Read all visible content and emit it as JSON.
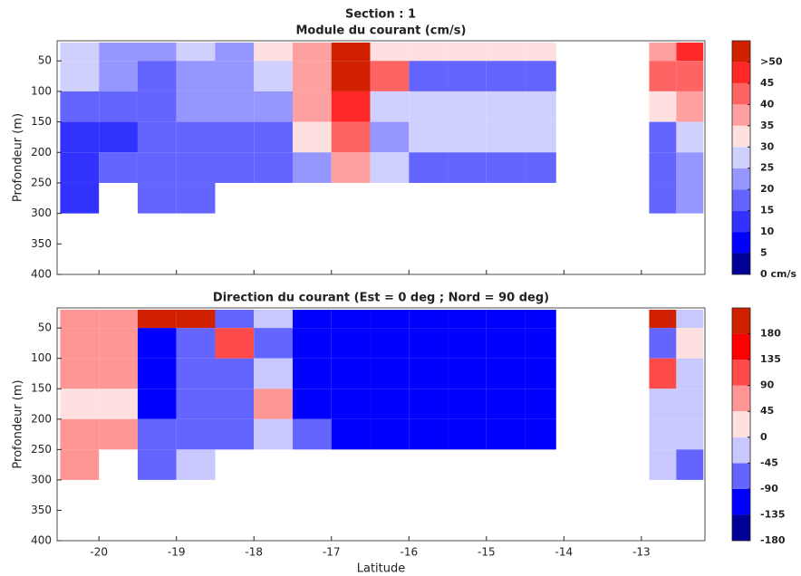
{
  "title": "Section : 1",
  "chart_data": [
    {
      "type": "heatmap",
      "title": "Module du courant (cm/s)",
      "y_label": "Profondeur (m)",
      "x_edges": [
        -20.5,
        -20,
        -19.5,
        -19,
        -18.5,
        -18,
        -17.5,
        -17,
        -16.5,
        -16,
        -15.5,
        -15,
        -14.5,
        -14.1,
        -12.9,
        -12.55,
        -12.2
      ],
      "y_edges": [
        20,
        50,
        100,
        150,
        200,
        250,
        300
      ],
      "values": [
        [
          25,
          20,
          20,
          25,
          20,
          30,
          35,
          50,
          30,
          30,
          30,
          30,
          30,
          null,
          35,
          45
        ],
        [
          25,
          20,
          15,
          20,
          20,
          25,
          35,
          50,
          40,
          15,
          15,
          15,
          15,
          null,
          40,
          40
        ],
        [
          15,
          15,
          15,
          20,
          20,
          20,
          35,
          45,
          25,
          25,
          25,
          25,
          25,
          null,
          30,
          35
        ],
        [
          10,
          10,
          15,
          15,
          15,
          15,
          30,
          40,
          20,
          25,
          25,
          25,
          25,
          null,
          15,
          25
        ],
        [
          10,
          15,
          15,
          15,
          15,
          15,
          20,
          35,
          25,
          15,
          15,
          15,
          15,
          null,
          15,
          20
        ],
        [
          10,
          null,
          15,
          15,
          null,
          null,
          null,
          null,
          null,
          null,
          null,
          null,
          null,
          null,
          15,
          20
        ]
      ],
      "xlim": [
        -20.54,
        -12.18
      ],
      "ylim": [
        17,
        400
      ],
      "xticks": [
        -20,
        -19,
        -18,
        -17,
        -16,
        -15,
        -14,
        -13
      ],
      "yticks": [
        50,
        100,
        150,
        200,
        250,
        300,
        350,
        400
      ],
      "colorbar": {
        "lim": [
          0,
          55
        ],
        "colors": [
          "#000096",
          "#0000ff",
          "#3232ff",
          "#6464ff",
          "#9696ff",
          "#d0d0ff",
          "#ffe0e0",
          "#ffa0a0",
          "#ff6464",
          "#ff2828",
          "#d02000"
        ],
        "ticks": [
          {
            "value": 0,
            "label": "0 cm/s"
          },
          5,
          10,
          15,
          20,
          25,
          30,
          35,
          40,
          45,
          {
            "value": 50,
            "label": ">50"
          }
        ]
      }
    },
    {
      "type": "heatmap",
      "title": "Direction du courant (Est = 0 deg ; Nord = 90 deg)",
      "y_label": "Profondeur (m)",
      "x_label": "Latitude",
      "x_edges": [
        -20.5,
        -20,
        -19.5,
        -19,
        -18.5,
        -18,
        -17.5,
        -17,
        -16.5,
        -16,
        -15.5,
        -15,
        -14.5,
        -14.1,
        -12.9,
        -12.55,
        -12.2
      ],
      "y_edges": [
        20,
        50,
        100,
        150,
        200,
        250,
        300
      ],
      "values": [
        [
          60,
          60,
          180,
          180,
          -90,
          -45,
          -120,
          -120,
          -120,
          -120,
          -120,
          -120,
          -120,
          null,
          180,
          -45
        ],
        [
          60,
          45,
          -120,
          -90,
          120,
          -60,
          -120,
          -120,
          -120,
          -120,
          -120,
          -120,
          -120,
          null,
          -90,
          20
        ],
        [
          45,
          45,
          -120,
          -90,
          -90,
          -45,
          -100,
          -120,
          -120,
          -120,
          -120,
          -120,
          -120,
          null,
          90,
          -45
        ],
        [
          20,
          20,
          -100,
          -90,
          -90,
          45,
          -120,
          -120,
          -120,
          -120,
          -120,
          -120,
          -120,
          null,
          -45,
          -45
        ],
        [
          60,
          45,
          -60,
          -60,
          -90,
          -30,
          -90,
          -120,
          -120,
          -120,
          -120,
          -120,
          -120,
          null,
          -45,
          -30
        ],
        [
          60,
          null,
          -60,
          -45,
          null,
          null,
          null,
          null,
          null,
          null,
          null,
          null,
          null,
          null,
          -45,
          -60
        ]
      ],
      "xlim": [
        -20.54,
        -12.18
      ],
      "ylim": [
        17,
        400
      ],
      "xticks": [
        -20,
        -19,
        -18,
        -17,
        -16,
        -15,
        -14,
        -13
      ],
      "yticks": [
        50,
        100,
        150,
        200,
        250,
        300,
        350,
        400
      ],
      "colorbar": {
        "lim": [
          -180,
          225
        ],
        "colors": [
          "#000096",
          "#0000ff",
          "#6464ff",
          "#c8c8ff",
          "#ffe0e0",
          "#ff9696",
          "#ff4a4a",
          "#ff0000",
          "#d02000"
        ],
        "ticks": [
          -180,
          -135,
          -90,
          -45,
          0,
          45,
          90,
          135,
          180
        ]
      }
    }
  ]
}
